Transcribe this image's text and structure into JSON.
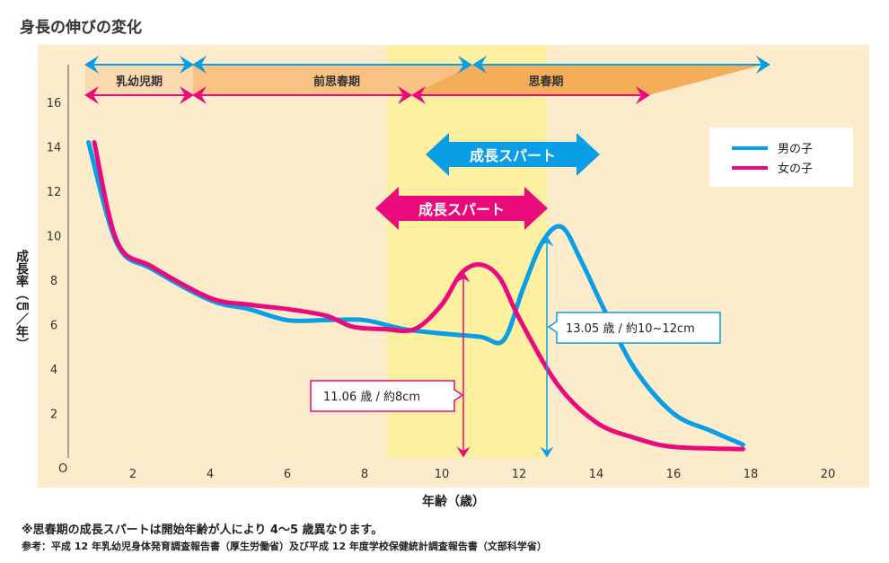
{
  "chart_data": {
    "type": "line",
    "title": "身長の伸びの変化",
    "xlabel": "年齢（歳）",
    "ylabel": "成長率（㎝／年）",
    "xlim": [
      0,
      20
    ],
    "ylim": [
      0,
      16
    ],
    "xticks": [
      "2",
      "4",
      "6",
      "8",
      "10",
      "12",
      "14",
      "16",
      "18",
      "20"
    ],
    "yticks": [
      "2",
      "4",
      "6",
      "8",
      "10",
      "12",
      "14",
      "16"
    ],
    "origin_label": "O",
    "legend": {
      "position": "top-right",
      "entries": [
        "男の子",
        "女の子"
      ]
    },
    "colors": {
      "boy": "#0a9ee6",
      "girl": "#ea0a7c",
      "band": "#fdf0a0",
      "bg": "#fdeccb"
    },
    "series": [
      {
        "name": "男の子",
        "points": [
          [
            0.85,
            14.2
          ],
          [
            1.6,
            9.6
          ],
          [
            2.5,
            8.5
          ],
          [
            4,
            7.1
          ],
          [
            5,
            6.7
          ],
          [
            6,
            6.2
          ],
          [
            7,
            6.2
          ],
          [
            8,
            6.2
          ],
          [
            9,
            5.8
          ],
          [
            10,
            5.6
          ],
          [
            11,
            5.45
          ],
          [
            11.6,
            5.3
          ],
          [
            12.1,
            7.6
          ],
          [
            12.6,
            9.7
          ],
          [
            13.1,
            10.4
          ],
          [
            13.6,
            8.9
          ],
          [
            14.2,
            6.7
          ],
          [
            15,
            4
          ],
          [
            16,
            2
          ],
          [
            17,
            1.2
          ],
          [
            17.8,
            0.6
          ]
        ]
      },
      {
        "name": "女の子",
        "points": [
          [
            1,
            14.2
          ],
          [
            1.6,
            9.7
          ],
          [
            2.5,
            8.6
          ],
          [
            4,
            7.2
          ],
          [
            5,
            6.9
          ],
          [
            6,
            6.7
          ],
          [
            7,
            6.4
          ],
          [
            7.7,
            5.9
          ],
          [
            8.5,
            5.8
          ],
          [
            9.3,
            5.8
          ],
          [
            10,
            6.9
          ],
          [
            10.5,
            8.3
          ],
          [
            11,
            8.7
          ],
          [
            11.5,
            8.1
          ],
          [
            12,
            6.3
          ],
          [
            13,
            3.3
          ],
          [
            14,
            1.6
          ],
          [
            15,
            0.9
          ],
          [
            16,
            0.5
          ],
          [
            17.8,
            0.4
          ]
        ]
      }
    ],
    "periods": {
      "infancy": "乳幼児期",
      "prepuberty": "前思春期",
      "puberty": "思春期"
    },
    "spurt_label": "成長スパート",
    "annotations": {
      "girl": "11.06 歳 / 約8cm",
      "boy": "13.05 歳 / 約10~12cm"
    }
  },
  "notes": [
    "※思春期の成長スパートは開始年齢が人により 4～5 歳異なります。",
    "参考：平成 12 年乳幼児身体発育調査報告書（厚生労働省）及び平成 12 年度学校保健統計調査報告書（文部科学省）"
  ]
}
